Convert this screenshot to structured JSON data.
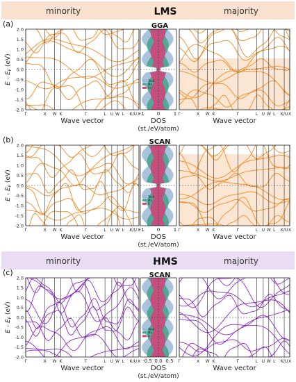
{
  "figure": {
    "sections": [
      {
        "header_title": "LMS",
        "minority_label": "minority",
        "majority_label": "majority",
        "header_color": "#fbe2d0",
        "band_color": "#f08a24",
        "gap_fill": "#fbe6d4",
        "panels": [
          {
            "panel_label": "(a)",
            "method": "GGA",
            "legend": [
              "Total",
              "Mn",
              "Fe"
            ],
            "majority_gap": [
              -2.0,
              0.55
            ],
            "dos_tick_labels": [
              "-1",
              "0",
              "1"
            ]
          },
          {
            "panel_label": "(b)",
            "method": "SCAN",
            "legend": [
              "Total",
              "Mn",
              "V"
            ],
            "majority_gap": [
              -2.0,
              1.55
            ],
            "dos_tick_labels": [
              "-1",
              "0",
              "1"
            ]
          }
        ]
      },
      {
        "header_title": "HMS",
        "minority_label": "minority",
        "majority_label": "majority",
        "header_color": "#e9dcf3",
        "band_color": "#8a2bc2",
        "gap_fill": "none",
        "panels": [
          {
            "panel_label": "(c)",
            "method": "SCAN",
            "legend": [
              "Total",
              "Mn",
              "V"
            ],
            "majority_gap": null,
            "dos_tick_labels": [
              "-0.5",
              "0.0",
              "0.5"
            ]
          }
        ]
      }
    ],
    "axes": {
      "ylabel": "E - E",
      "ylabel_sub": "F",
      "ylabel_unit": "(eV)",
      "y_ticks": [
        "2.0",
        "1.5",
        "1.0",
        "0.5",
        "0.0",
        "-0.5",
        "-1.0",
        "-1.5",
        "-2.0"
      ],
      "k_ticks": [
        "Γ",
        "X",
        "W",
        "K",
        "Γ",
        "L",
        "U",
        "W",
        "L",
        "K/U",
        "X"
      ],
      "xlabel": "Wave vector",
      "dos_xlabel": "DOS",
      "dos_unit": "(st./eV/atom)"
    },
    "dos_colors": {
      "Total": "#9bb8d6",
      "Mn": "#3fa58a",
      "V": "#d6407a",
      "Fe": "#d6407a"
    }
  }
}
